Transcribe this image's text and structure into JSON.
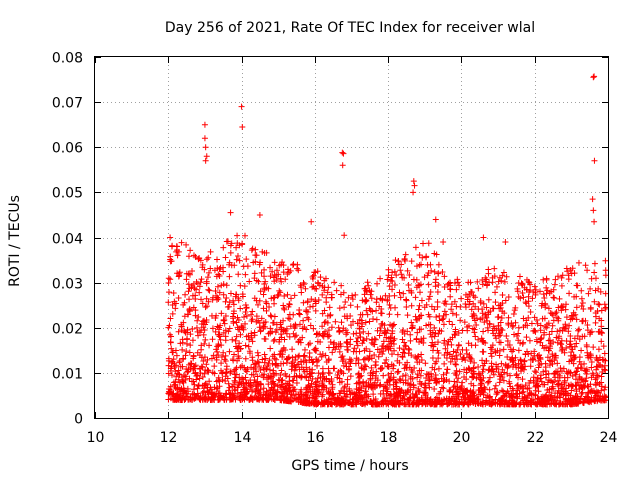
{
  "chart_data": {
    "type": "scatter",
    "title": "Day 256 of 2021, Rate Of TEC Index for receiver wlal",
    "xlabel": "GPS time / hours",
    "ylabel": "ROTI / TECUs",
    "xlim": [
      10,
      24
    ],
    "ylim": [
      0,
      0.08
    ],
    "xticks": [
      "10",
      "12",
      "14",
      "16",
      "18",
      "20",
      "22",
      "24"
    ],
    "yticks": [
      "0",
      "0.01",
      "0.02",
      "0.03",
      "0.04",
      "0.05",
      "0.06",
      "0.07",
      "0.08"
    ],
    "grid": true,
    "marker": "+",
    "color": "#ff0000",
    "series": [
      {
        "name": "ROTI",
        "outliers": [
          [
            13.0,
            0.065
          ],
          [
            13.0,
            0.062
          ],
          [
            13.02,
            0.06
          ],
          [
            13.05,
            0.058
          ],
          [
            13.02,
            0.057
          ],
          [
            14.0,
            0.069
          ],
          [
            14.02,
            0.0645
          ],
          [
            16.75,
            0.0588
          ],
          [
            16.78,
            0.0586
          ],
          [
            16.76,
            0.056
          ],
          [
            16.8,
            0.0405
          ],
          [
            18.7,
            0.0525
          ],
          [
            18.72,
            0.0515
          ],
          [
            18.68,
            0.05
          ],
          [
            23.6,
            0.0755
          ],
          [
            23.62,
            0.0757
          ],
          [
            23.63,
            0.057
          ],
          [
            23.58,
            0.0485
          ],
          [
            23.6,
            0.046
          ],
          [
            23.62,
            0.0435
          ],
          [
            12.05,
            0.04
          ],
          [
            12.1,
            0.038
          ],
          [
            13.7,
            0.0455
          ],
          [
            14.5,
            0.045
          ],
          [
            15.9,
            0.0435
          ],
          [
            19.3,
            0.044
          ],
          [
            19.5,
            0.039
          ],
          [
            20.6,
            0.04
          ],
          [
            21.2,
            0.039
          ],
          [
            18.2,
            0.035
          ]
        ],
        "hourly_envelope": {
          "hours": [
            12,
            13,
            14,
            15,
            16,
            17,
            18,
            19,
            20,
            21,
            22,
            23,
            24
          ],
          "typical_max": [
            0.04,
            0.037,
            0.041,
            0.035,
            0.033,
            0.028,
            0.033,
            0.04,
            0.03,
            0.034,
            0.03,
            0.034,
            0.036
          ],
          "typical_min": [
            0.004,
            0.004,
            0.004,
            0.004,
            0.003,
            0.003,
            0.003,
            0.003,
            0.003,
            0.003,
            0.003,
            0.003,
            0.004
          ]
        }
      }
    ]
  }
}
